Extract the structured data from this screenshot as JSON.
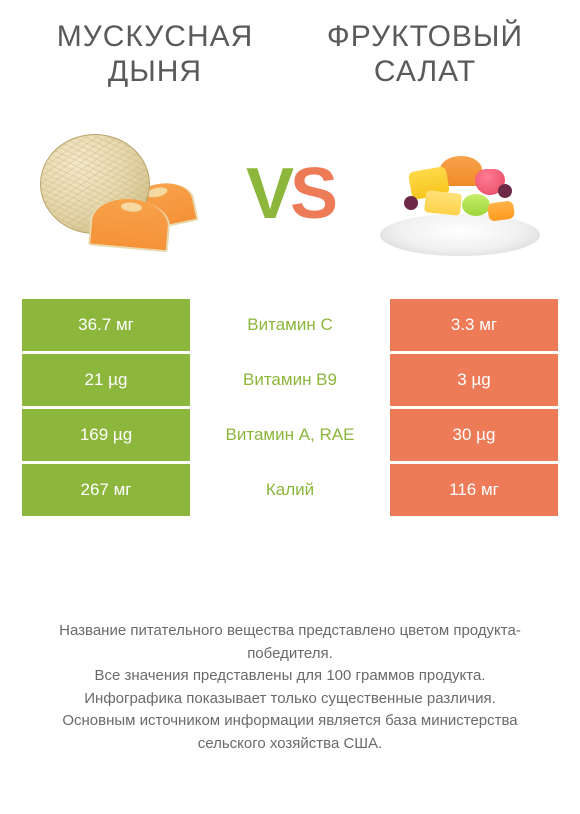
{
  "colors": {
    "left": "#8cb63c",
    "right": "#ee7b58",
    "text": "#5a5a5a",
    "background": "#ffffff"
  },
  "titles": {
    "left": "МУСКУСНАЯ ДЫНЯ",
    "right": "ФРУКТОВЫЙ САЛАТ"
  },
  "vs": {
    "v": "V",
    "s": "S"
  },
  "rows": [
    {
      "left": "36.7 мг",
      "label": "Витамин C",
      "right": "3.3 мг",
      "winner": "left"
    },
    {
      "left": "21 µg",
      "label": "Витамин B9",
      "right": "3 µg",
      "winner": "left"
    },
    {
      "left": "169 µg",
      "label": "Витамин A, RAE",
      "right": "30 µg",
      "winner": "left"
    },
    {
      "left": "267 мг",
      "label": "Калий",
      "right": "116 мг",
      "winner": "left"
    }
  ],
  "footer": {
    "l1": "Название питательного вещества представлено цветом продукта-победителя.",
    "l2": "Все значения представлены для 100 граммов продукта.",
    "l3": "Инфографика показывает только существенные различия.",
    "l4": "Основным источником информации является база министерства сельского хозяйства США."
  }
}
